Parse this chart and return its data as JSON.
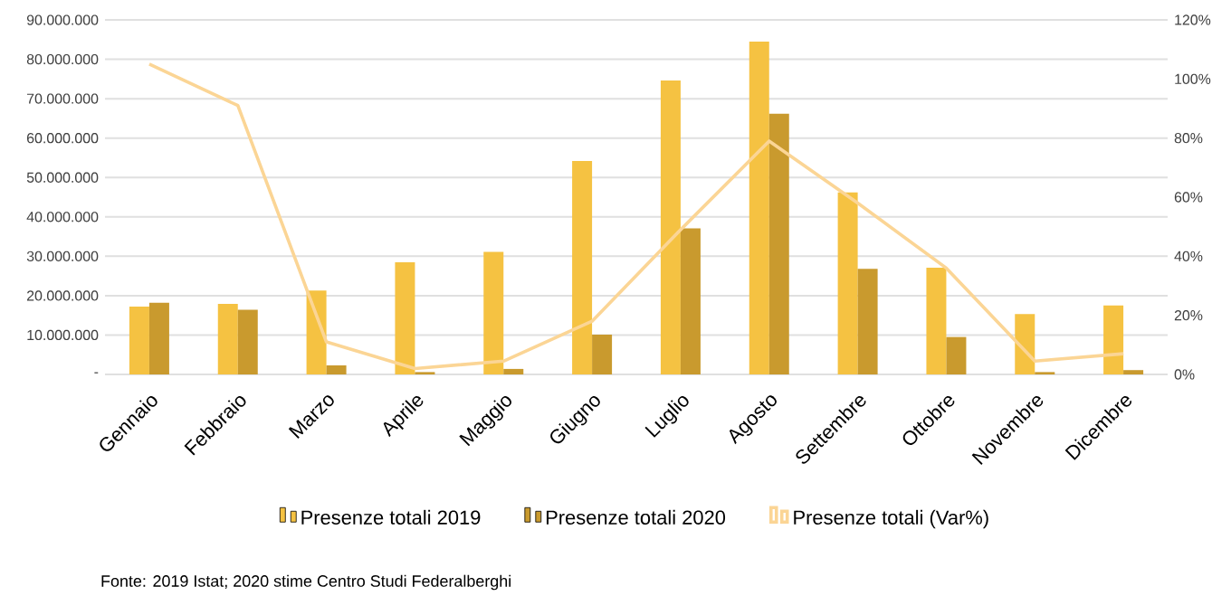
{
  "chart_data": {
    "type": "bar",
    "categories": [
      "Gennaio",
      "Febbraio",
      "Marzo",
      "Aprile",
      "Maggio",
      "Giugno",
      "Luglio",
      "Agosto",
      "Settembre",
      "Ottobre",
      "Novembre",
      "Dicembre"
    ],
    "series": [
      {
        "name": "Presenze totali 2019",
        "color": "#f5c242",
        "values": [
          17200000,
          17900000,
          21300000,
          28500000,
          31100000,
          54200000,
          74600000,
          84500000,
          46200000,
          27100000,
          15300000,
          17500000
        ]
      },
      {
        "name": "Presenze totali 2020",
        "color": "#c99a2e",
        "values": [
          18200000,
          16400000,
          2300000,
          600000,
          1400000,
          10100000,
          37100000,
          66200000,
          26800000,
          9500000,
          600000,
          1100000
        ]
      },
      {
        "name": "Presenze totali (Var%)",
        "color": "#fbd595",
        "type": "line",
        "axis": "y2",
        "values": [
          105,
          91,
          11,
          2,
          4.5,
          18,
          49,
          79,
          58,
          36,
          4.5,
          7
        ]
      }
    ],
    "ylim": [
      0,
      90000000
    ],
    "yticks": [
      {
        "value": 0,
        "label": "-"
      },
      {
        "value": 10000000,
        "label": "10.000.000"
      },
      {
        "value": 20000000,
        "label": "20.000.000"
      },
      {
        "value": 30000000,
        "label": "30.000.000"
      },
      {
        "value": 40000000,
        "label": "40.000.000"
      },
      {
        "value": 50000000,
        "label": "50.000.000"
      },
      {
        "value": 60000000,
        "label": "60.000.000"
      },
      {
        "value": 70000000,
        "label": "70.000.000"
      },
      {
        "value": 80000000,
        "label": "80.000.000"
      },
      {
        "value": 90000000,
        "label": "90.000.000"
      }
    ],
    "y2lim": [
      0,
      120
    ],
    "y2ticks": [
      {
        "value": 0,
        "label": "0%"
      },
      {
        "value": 20,
        "label": "20%"
      },
      {
        "value": 40,
        "label": "40%"
      },
      {
        "value": 60,
        "label": "60%"
      },
      {
        "value": 80,
        "label": "80%"
      },
      {
        "value": 100,
        "label": "100%"
      },
      {
        "value": 120,
        "label": "120%"
      }
    ],
    "grid": "y",
    "legend": "bottom",
    "annotations": [
      "Fonte: 2019 Istat; 2020 stime Centro Studi Federalberghi"
    ]
  }
}
